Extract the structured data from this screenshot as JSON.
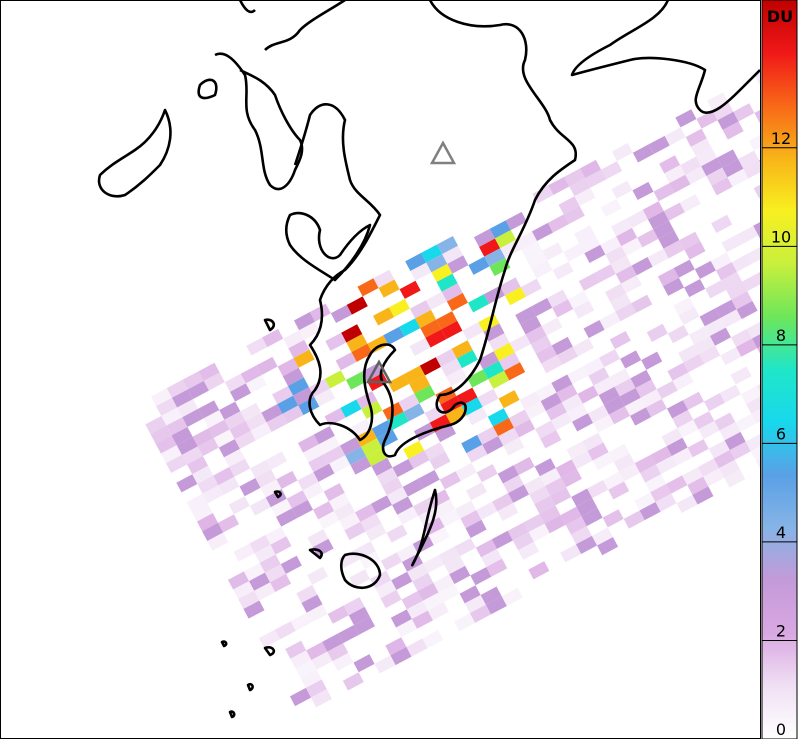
{
  "colorbar": {
    "label": "DU",
    "lim": [
      0,
      15
    ],
    "ticks": [
      0,
      2,
      4,
      6,
      8,
      10,
      12
    ],
    "colors": [
      "#ffffff",
      "#f0e0f4",
      "#d9a8e2",
      "#c49ad8",
      "#86b4e6",
      "#5aa0e6",
      "#18d8ec",
      "#20e6c8",
      "#6ee65a",
      "#c8f03c",
      "#f8f020",
      "#f8b418",
      "#f86818",
      "#f01818",
      "#c00000"
    ]
  }
}
